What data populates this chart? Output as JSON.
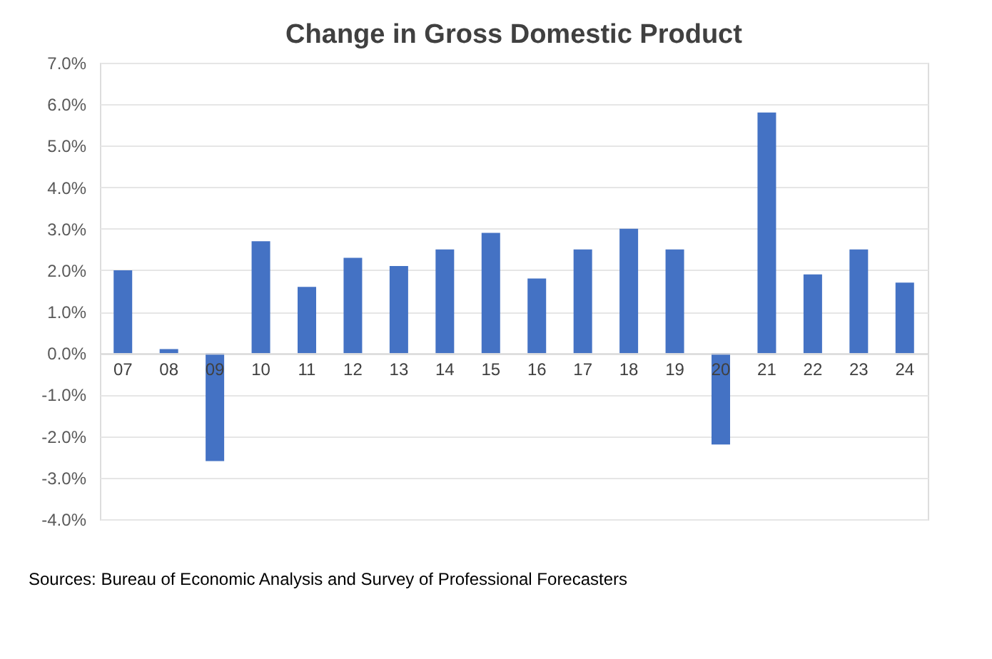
{
  "chart_data": {
    "type": "bar",
    "title": "Change in Gross Domestic Product",
    "categories": [
      "07",
      "08",
      "09",
      "10",
      "11",
      "12",
      "13",
      "14",
      "15",
      "16",
      "17",
      "18",
      "19",
      "20",
      "21",
      "22",
      "23",
      "24"
    ],
    "values": [
      2.0,
      0.1,
      -2.6,
      2.7,
      1.6,
      2.3,
      2.1,
      2.5,
      2.9,
      1.8,
      2.5,
      3.0,
      2.5,
      -2.2,
      5.8,
      1.9,
      2.5,
      1.7
    ],
    "color": "#4472c4",
    "ylim": [
      -4,
      7
    ],
    "yticks": [
      {
        "value": -4,
        "label": "-4.0%"
      },
      {
        "value": -3,
        "label": "-3.0%"
      },
      {
        "value": -2,
        "label": "-2.0%"
      },
      {
        "value": -1,
        "label": "-1.0%"
      },
      {
        "value": 0,
        "label": "0.0%"
      },
      {
        "value": 1,
        "label": "1.0%"
      },
      {
        "value": 2,
        "label": "2.0%"
      },
      {
        "value": 3,
        "label": "3.0%"
      },
      {
        "value": 4,
        "label": "4.0%"
      },
      {
        "value": 5,
        "label": "5.0%"
      },
      {
        "value": 6,
        "label": "6.0%"
      },
      {
        "value": 7,
        "label": "7.0%"
      }
    ],
    "grid": "y",
    "annotations": [
      "Sources: Bureau of Economic Analysis and Survey of Professional Forecasters"
    ]
  }
}
